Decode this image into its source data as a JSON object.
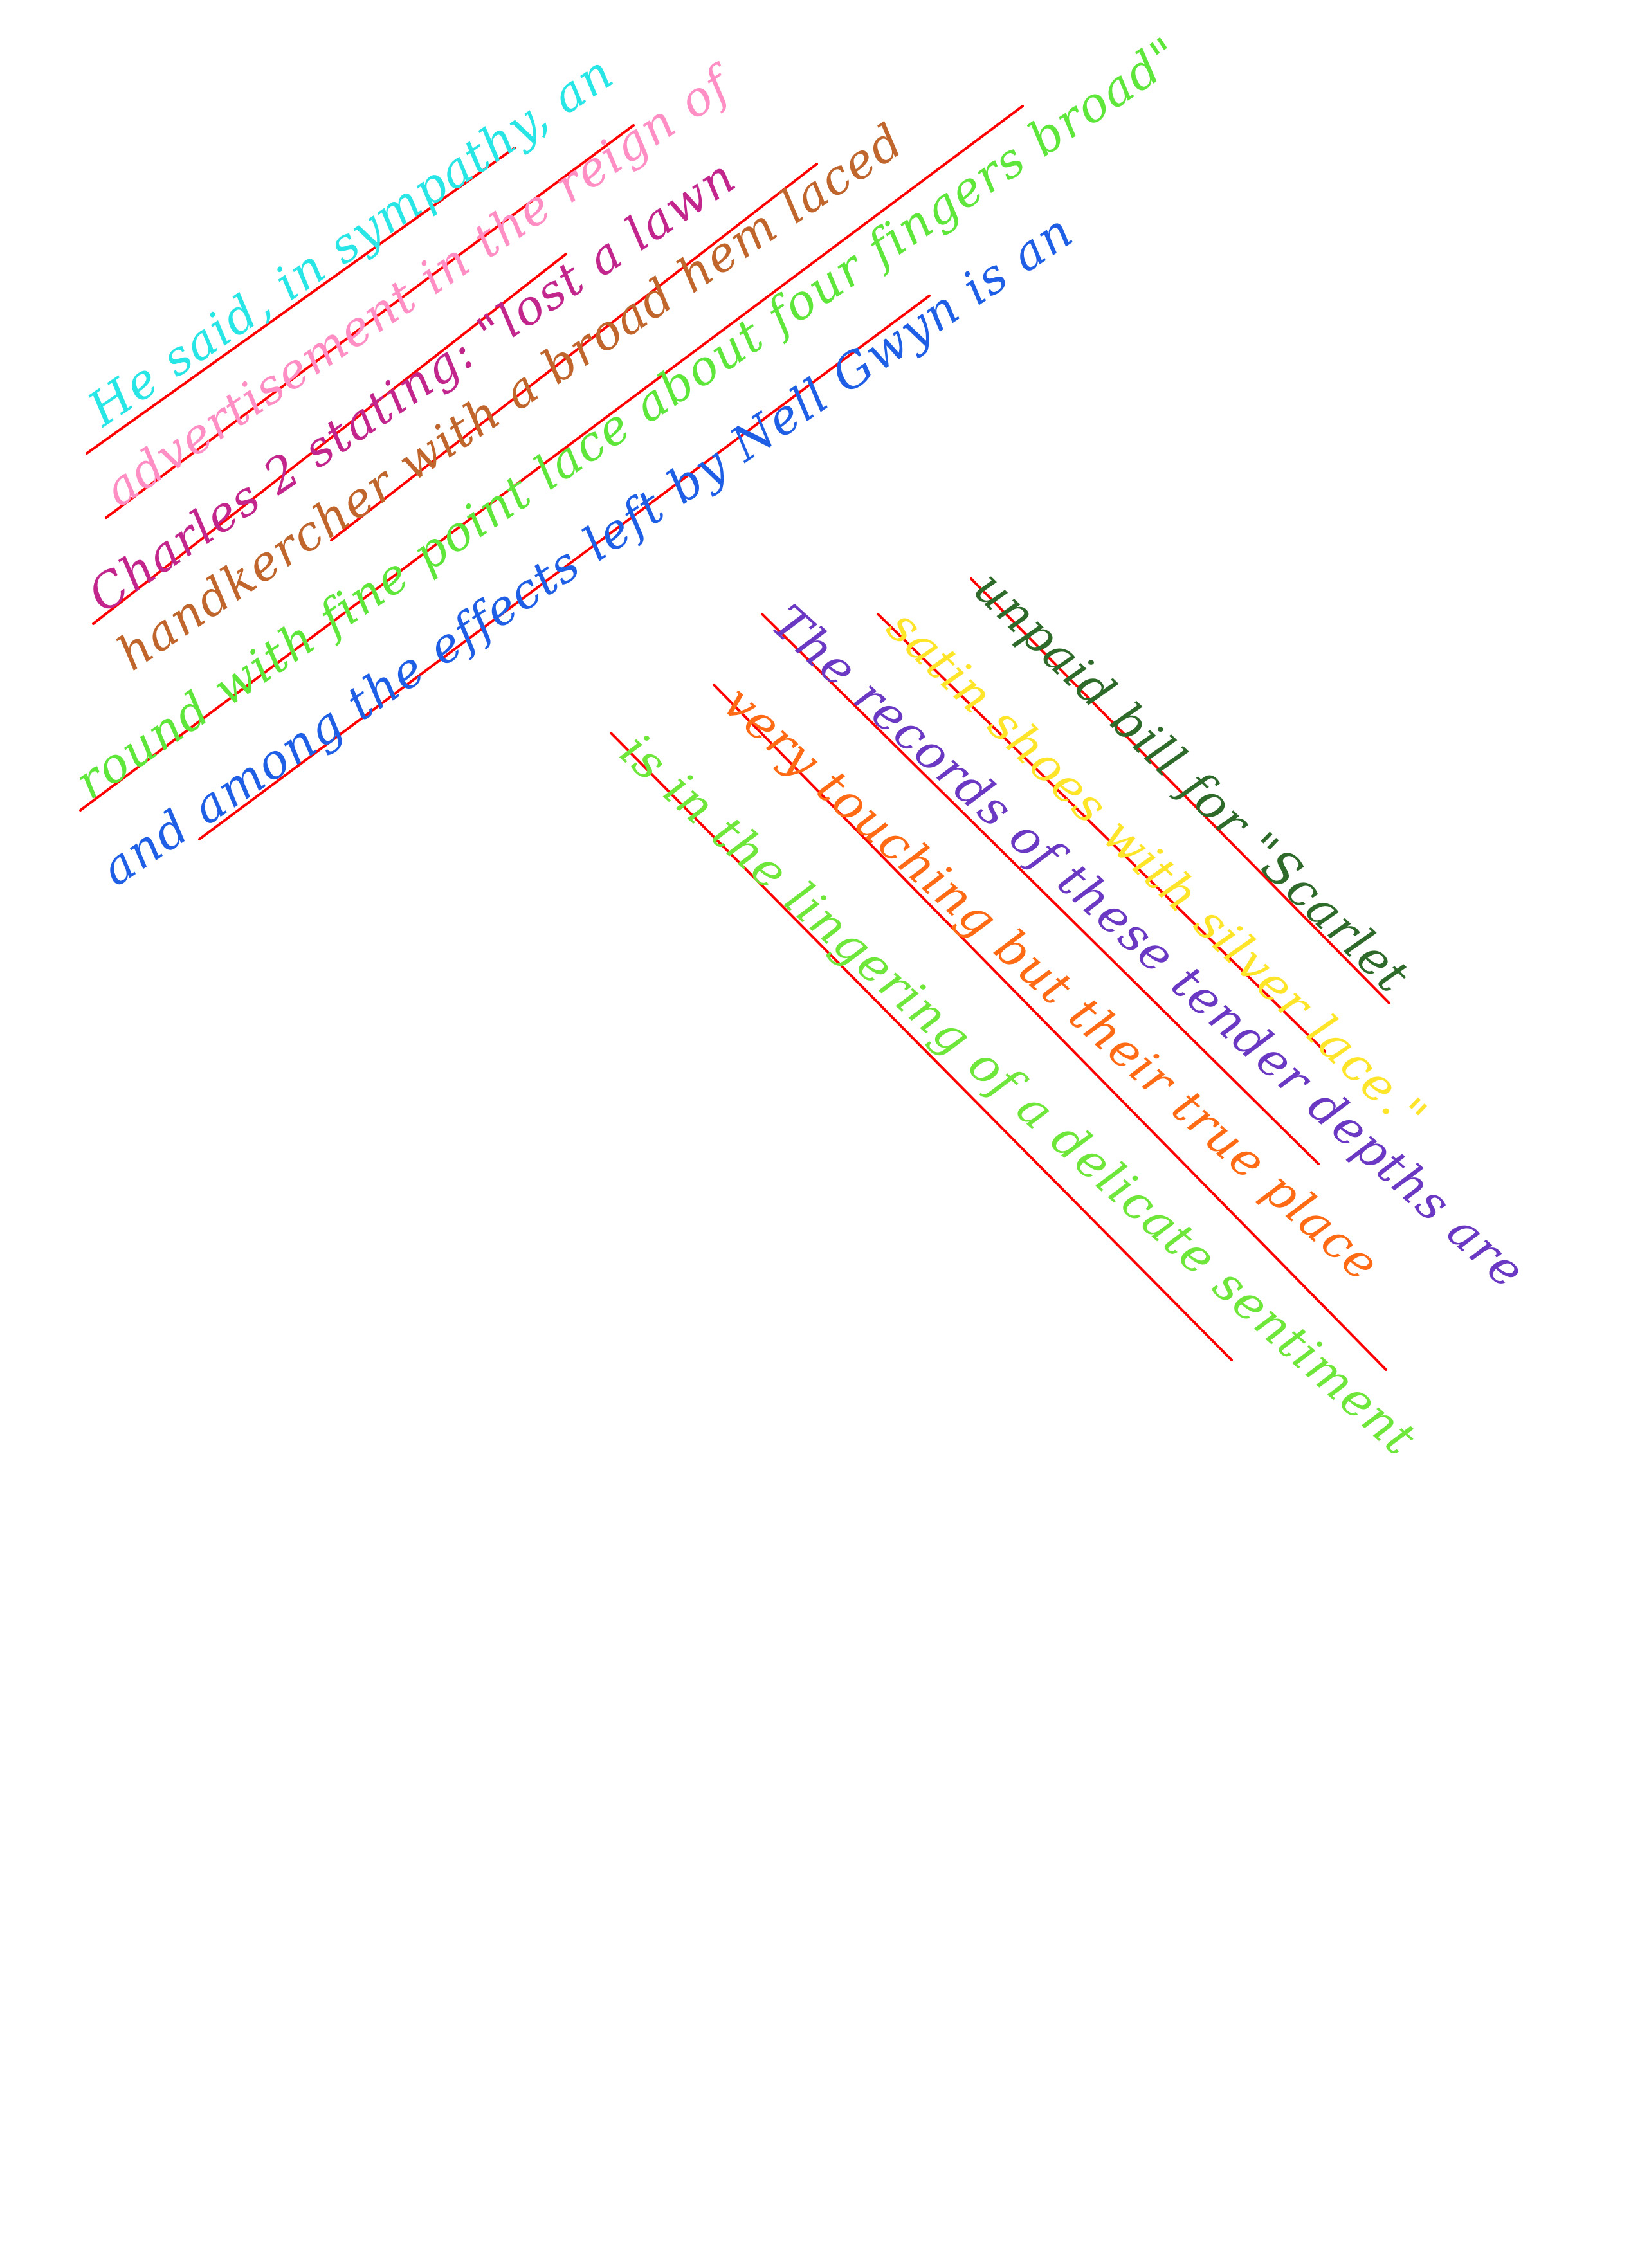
{
  "page": {
    "background": "#ffffff",
    "rule_color": "#ff0000"
  },
  "block_upper": {
    "lines": [
      {
        "text": "He said, in sympathy, an",
        "color": "#29e6e6"
      },
      {
        "text": "advertisement in the reign of",
        "color": "#ff8ec4"
      },
      {
        "text": "Charles 2 stating: \"lost a lawn",
        "color": "#c2268c"
      },
      {
        "text": "handkercher with a broad hem laced",
        "color": "#c0652c"
      },
      {
        "text": "round with fine point lace about four fingers broad\"",
        "color": "#5ee63a"
      },
      {
        "text": "and among the effects left by Nell Gwyn is an",
        "color": "#1f5fe6"
      }
    ]
  },
  "block_lower": {
    "lines": [
      {
        "text": "unpaid bill for \"Scarlet",
        "color": "#2e6b2a"
      },
      {
        "text": "satin shoes with silver lace.\"",
        "color": "#ffe52a"
      },
      {
        "text": "The records of these tender depths are",
        "color": "#6a38c2"
      },
      {
        "text": "very touching but their true place",
        "color": "#ff6a14"
      },
      {
        "text": "is in the lingering of a delicate sentiment",
        "color": "#6ee63a"
      }
    ]
  }
}
